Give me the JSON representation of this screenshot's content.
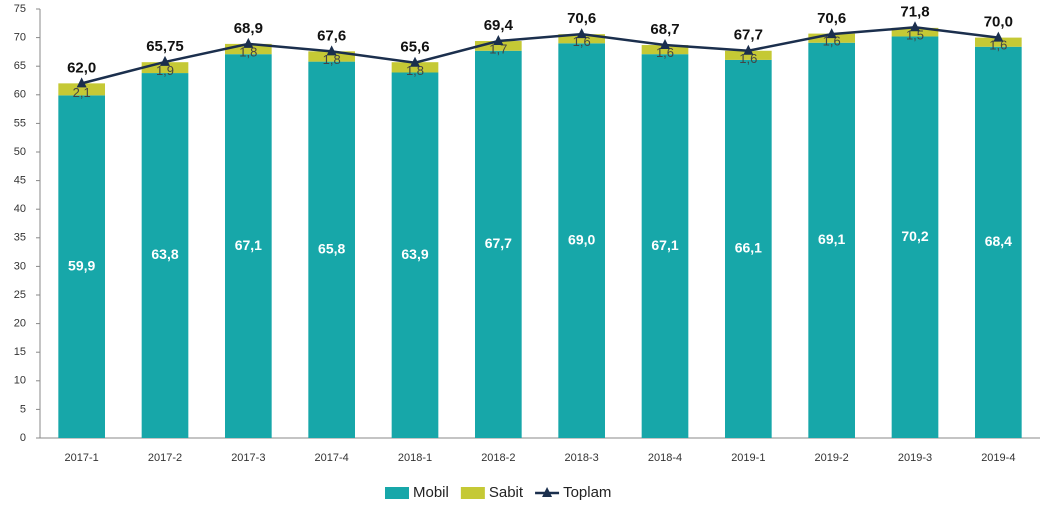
{
  "chart_data": {
    "type": "bar",
    "stacked": true,
    "categories": [
      "2017-1",
      "2017-2",
      "2017-3",
      "2017-4",
      "2018-1",
      "2018-2",
      "2018-3",
      "2018-4",
      "2019-1",
      "2019-2",
      "2019-3",
      "2019-4"
    ],
    "series": [
      {
        "name": "Mobil",
        "color": "#17a7a9",
        "values": [
          59.9,
          63.8,
          67.1,
          65.8,
          63.9,
          67.7,
          69.0,
          67.1,
          66.1,
          69.1,
          70.2,
          68.4
        ],
        "value_labels": [
          "59,9",
          "63,8",
          "67,1",
          "65,8",
          "63,9",
          "67,7",
          "69,0",
          "67,1",
          "66,1",
          "69,1",
          "70,2",
          "68,4"
        ]
      },
      {
        "name": "Sabit",
        "color": "#c5c935",
        "values": [
          2.1,
          1.9,
          1.8,
          1.8,
          1.8,
          1.7,
          1.6,
          1.6,
          1.6,
          1.6,
          1.5,
          1.6
        ],
        "value_labels": [
          "2,1",
          "1,9",
          "1,8",
          "1,8",
          "1,8",
          "1,7",
          "1,6",
          "1,6",
          "1,6",
          "1,6",
          "1,5",
          "1,6"
        ]
      },
      {
        "name": "Toplam",
        "type": "line",
        "color": "#1b2f4d",
        "values": [
          62.0,
          65.75,
          68.9,
          67.6,
          65.6,
          69.4,
          70.6,
          68.7,
          67.7,
          70.6,
          71.8,
          70.0
        ],
        "value_labels": [
          "62,0",
          "65,75",
          "68,9",
          "67,6",
          "65,6",
          "69,4",
          "70,6",
          "68,7",
          "67,7",
          "70,6",
          "71,8",
          "70,0"
        ]
      }
    ],
    "ylim": [
      0,
      75
    ],
    "yticks": [
      0,
      5,
      10,
      15,
      20,
      25,
      30,
      35,
      40,
      45,
      50,
      55,
      60,
      65,
      70,
      75
    ],
    "grid": false,
    "legend": "bottom"
  }
}
